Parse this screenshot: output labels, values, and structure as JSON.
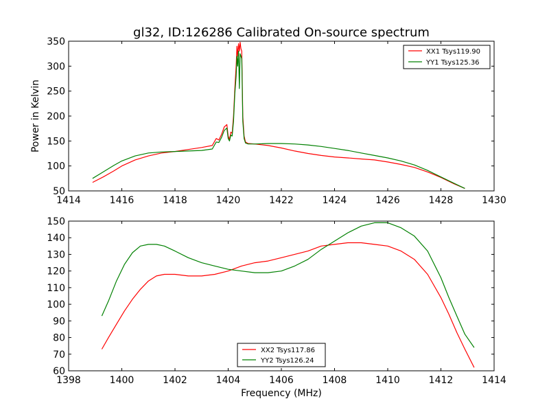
{
  "figure": {
    "title": "gl32, ID:126286 Calibrated On-source spectrum"
  },
  "chart_data": [
    {
      "type": "line",
      "title": "gl32, ID:126286 Calibrated On-source spectrum",
      "xlabel": "",
      "ylabel": "Power in Kelvin",
      "xlim": [
        1414,
        1430
      ],
      "ylim": [
        50,
        350
      ],
      "xticks": [
        1414,
        1416,
        1418,
        1420,
        1422,
        1424,
        1426,
        1428,
        1430
      ],
      "yticks": [
        50,
        100,
        150,
        200,
        250,
        300,
        350
      ],
      "grid": false,
      "legend_position": "top-right",
      "series": [
        {
          "name": "XX1 Tsys119.90",
          "color": "#ff0000",
          "x": [
            1414.9,
            1415.3,
            1415.7,
            1416.0,
            1416.5,
            1417.0,
            1417.5,
            1418.0,
            1418.5,
            1419.0,
            1419.4,
            1419.55,
            1419.65,
            1419.75,
            1419.85,
            1419.95,
            1420.0,
            1420.05,
            1420.1,
            1420.15,
            1420.2,
            1420.25,
            1420.3,
            1420.33,
            1420.36,
            1420.39,
            1420.42,
            1420.45,
            1420.48,
            1420.51,
            1420.55,
            1420.6,
            1420.65,
            1420.75,
            1421.0,
            1421.5,
            1422.0,
            1422.5,
            1423.0,
            1423.5,
            1424.0,
            1424.5,
            1425.0,
            1425.5,
            1426.0,
            1426.5,
            1427.0,
            1427.5,
            1428.0,
            1428.5,
            1428.9
          ],
          "values": [
            67,
            78,
            90,
            100,
            112,
            120,
            126,
            129,
            133,
            137,
            141,
            155,
            152,
            163,
            178,
            183,
            160,
            153,
            168,
            165,
            200,
            255,
            300,
            340,
            320,
            345,
            330,
            348,
            335,
            330,
            200,
            160,
            148,
            145,
            144,
            141,
            136,
            130,
            125,
            121,
            118,
            116,
            114,
            112,
            108,
            103,
            97,
            88,
            77,
            64,
            55
          ]
        },
        {
          "name": "YY1 Tsys125.36",
          "color": "#008000",
          "x": [
            1414.9,
            1415.3,
            1415.7,
            1416.0,
            1416.5,
            1417.0,
            1417.5,
            1418.0,
            1418.5,
            1419.0,
            1419.4,
            1419.55,
            1419.65,
            1419.75,
            1419.85,
            1419.95,
            1420.0,
            1420.05,
            1420.1,
            1420.15,
            1420.2,
            1420.25,
            1420.3,
            1420.33,
            1420.36,
            1420.39,
            1420.42,
            1420.45,
            1420.48,
            1420.51,
            1420.55,
            1420.6,
            1420.65,
            1420.75,
            1421.0,
            1421.5,
            1422.0,
            1422.5,
            1423.0,
            1423.5,
            1424.0,
            1424.5,
            1425.0,
            1425.5,
            1426.0,
            1426.5,
            1427.0,
            1427.5,
            1428.0,
            1428.5,
            1428.9
          ],
          "values": [
            75,
            88,
            101,
            110,
            120,
            126,
            128,
            129,
            130,
            131,
            134,
            148,
            147,
            157,
            171,
            176,
            155,
            150,
            162,
            160,
            190,
            245,
            280,
            320,
            300,
            330,
            255,
            325,
            320,
            315,
            190,
            155,
            146,
            144,
            144,
            145,
            145,
            144,
            142,
            139,
            135,
            131,
            126,
            121,
            116,
            110,
            102,
            91,
            78,
            65,
            55
          ]
        }
      ]
    },
    {
      "type": "line",
      "title": "",
      "xlabel": "Frequency (MHz)",
      "ylabel": "",
      "xlim": [
        1398,
        1414
      ],
      "ylim": [
        60,
        150
      ],
      "xticks": [
        1398,
        1400,
        1402,
        1404,
        1406,
        1408,
        1410,
        1412,
        1414
      ],
      "yticks": [
        60,
        70,
        80,
        90,
        100,
        110,
        120,
        130,
        140,
        150
      ],
      "grid": false,
      "legend_position": "bottom-center",
      "series": [
        {
          "name": "XX2 Tsys117.86",
          "color": "#ff0000",
          "x": [
            1399.25,
            1399.5,
            1399.8,
            1400.1,
            1400.4,
            1400.7,
            1401.0,
            1401.3,
            1401.6,
            1402.0,
            1402.5,
            1403.0,
            1403.5,
            1404.0,
            1404.5,
            1405.0,
            1405.5,
            1406.0,
            1406.5,
            1407.0,
            1407.5,
            1408.0,
            1408.5,
            1409.0,
            1409.5,
            1410.0,
            1410.5,
            1411.0,
            1411.5,
            1412.0,
            1412.3,
            1412.6,
            1412.9,
            1413.25
          ],
          "values": [
            73,
            80,
            88,
            96,
            103,
            109,
            114,
            117,
            118,
            118,
            117,
            117,
            118,
            120,
            123,
            125,
            126,
            128,
            130,
            132,
            135,
            136,
            137,
            137,
            136,
            135,
            132,
            127,
            118,
            104,
            94,
            83,
            73,
            62
          ]
        },
        {
          "name": "YY2 Tsys126.24",
          "color": "#008000",
          "x": [
            1399.25,
            1399.5,
            1399.8,
            1400.1,
            1400.4,
            1400.7,
            1401.0,
            1401.3,
            1401.6,
            1402.0,
            1402.5,
            1403.0,
            1403.5,
            1404.0,
            1404.5,
            1405.0,
            1405.5,
            1406.0,
            1406.5,
            1407.0,
            1407.5,
            1408.0,
            1408.5,
            1409.0,
            1409.5,
            1410.0,
            1410.5,
            1411.0,
            1411.5,
            1412.0,
            1412.3,
            1412.6,
            1412.9,
            1413.25
          ],
          "values": [
            93,
            102,
            114,
            124,
            131,
            135,
            136,
            136,
            135,
            132,
            128,
            125,
            123,
            121,
            120,
            119,
            119,
            120,
            123,
            127,
            133,
            138,
            143,
            147,
            149,
            149,
            146,
            141,
            132,
            116,
            104,
            93,
            82,
            74
          ]
        }
      ]
    }
  ]
}
